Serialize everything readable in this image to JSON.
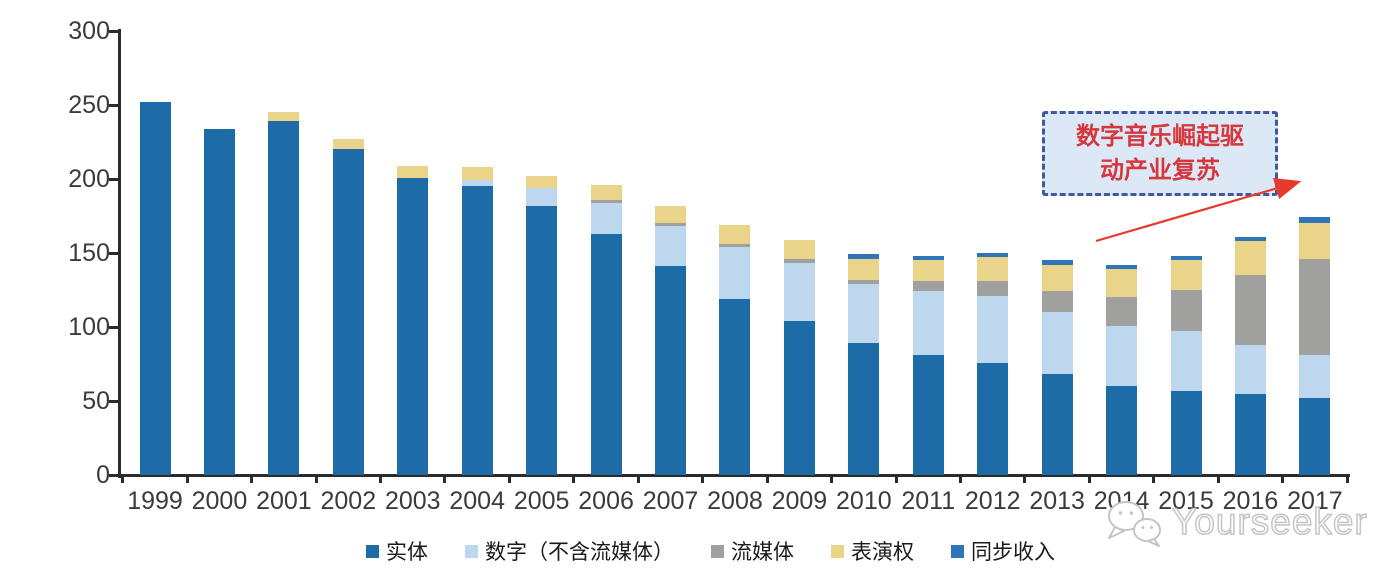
{
  "chart_data": {
    "type": "bar",
    "stacked": true,
    "title": "",
    "xlabel": "",
    "ylabel": "",
    "ylim": [
      0,
      300
    ],
    "yticks": [
      0,
      50,
      100,
      150,
      200,
      250,
      300
    ],
    "grid": false,
    "legend_position": "bottom",
    "categories": [
      "1999",
      "2000",
      "2001",
      "2002",
      "2003",
      "2004",
      "2005",
      "2006",
      "2007",
      "2008",
      "2009",
      "2010",
      "2011",
      "2012",
      "2013",
      "2014",
      "2015",
      "2016",
      "2017"
    ],
    "series": [
      {
        "name": "实体",
        "color": "#1e6ca7",
        "values": [
          252,
          234,
          239,
          220,
          201,
          195,
          182,
          163,
          141,
          119,
          104,
          89,
          81,
          76,
          68,
          60,
          57,
          55,
          52
        ]
      },
      {
        "name": "数字（不含流媒体）",
        "color": "#bdd7ee",
        "values": [
          0,
          0,
          0,
          0,
          0,
          4,
          12,
          21,
          27,
          35,
          39,
          40,
          43,
          45,
          42,
          41,
          40,
          33,
          29
        ]
      },
      {
        "name": "流媒体",
        "color": "#a0a09e",
        "values": [
          0,
          0,
          0,
          0,
          0,
          0,
          0,
          2,
          2,
          2,
          3,
          3,
          7,
          10,
          14,
          19,
          28,
          47,
          65
        ]
      },
      {
        "name": "表演权",
        "color": "#e9d48a",
        "values": [
          0,
          0,
          6,
          7,
          8,
          9,
          8,
          10,
          12,
          13,
          13,
          14,
          14,
          16,
          18,
          19,
          20,
          23,
          24
        ]
      },
      {
        "name": "同步收入",
        "color": "#2e76b8",
        "values": [
          0,
          0,
          0,
          0,
          0,
          0,
          0,
          0,
          0,
          0,
          0,
          3,
          3,
          3,
          3,
          3,
          3,
          3,
          4
        ]
      }
    ],
    "totals": [
      252,
      234,
      245,
      227,
      209,
      208,
      202,
      196,
      182,
      169,
      159,
      149,
      148,
      150,
      145,
      142,
      148,
      161,
      174
    ]
  },
  "annotation": {
    "line1": "数字音乐崛起驱",
    "line2": "动产业复苏",
    "box_fill": "#dce8f6",
    "border_color": "#41589e",
    "text_color": "#d6373c",
    "arrow_color": "#e8392f"
  },
  "watermark": {
    "label": "Yourseeker",
    "icon": "wechat-icon",
    "color": "#c5c5c5"
  }
}
